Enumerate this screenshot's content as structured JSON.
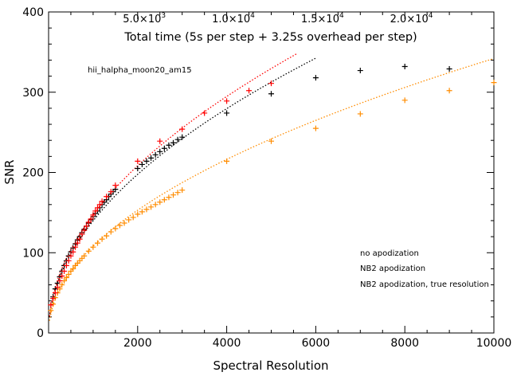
{
  "chart_data": {
    "type": "scatter",
    "annotation": "hii_halpha_moon20_am15",
    "xlabel": "Spectral Resolution",
    "ylabel": "SNR",
    "xlim": [
      0,
      10000
    ],
    "ylim": [
      0,
      400
    ],
    "x_ticks": [
      2000,
      4000,
      6000,
      8000,
      10000
    ],
    "y_ticks": [
      0,
      100,
      200,
      300,
      400
    ],
    "top_axis": {
      "label": "Total time (5s per step + 3.25s overhead per step)",
      "tick_labels": [
        {
          "mant": "5.0",
          "exp": "3",
          "at_x": 2150
        },
        {
          "mant": "1.0",
          "exp": "4",
          "at_x": 4150
        },
        {
          "mant": "1.5",
          "exp": "4",
          "at_x": 6150
        },
        {
          "mant": "2.0",
          "exp": "4",
          "at_x": 8150
        }
      ]
    },
    "legend": {
      "placement": "lower-right",
      "entries": [
        {
          "label": "no apodization",
          "color": "#000000"
        },
        {
          "label": "NB2 apodization",
          "color": "#ff8c00"
        },
        {
          "label": "NB2 apodization, true resolution",
          "color": "#ff0000"
        }
      ]
    },
    "series": [
      {
        "name": "no apodization",
        "color": "#000000",
        "marker": "plus",
        "points": [
          [
            100,
            45
          ],
          [
            150,
            55
          ],
          [
            200,
            62
          ],
          [
            250,
            70
          ],
          [
            300,
            77
          ],
          [
            350,
            84
          ],
          [
            400,
            90
          ],
          [
            450,
            96
          ],
          [
            500,
            101
          ],
          [
            550,
            106
          ],
          [
            600,
            111
          ],
          [
            650,
            116
          ],
          [
            700,
            120
          ],
          [
            750,
            125
          ],
          [
            800,
            129
          ],
          [
            850,
            133
          ],
          [
            900,
            137
          ],
          [
            950,
            141
          ],
          [
            1000,
            145
          ],
          [
            1050,
            149
          ],
          [
            1100,
            152
          ],
          [
            1150,
            156
          ],
          [
            1200,
            160
          ],
          [
            1250,
            163
          ],
          [
            1300,
            166
          ],
          [
            1350,
            170
          ],
          [
            1400,
            173
          ],
          [
            1450,
            176
          ],
          [
            1500,
            179
          ],
          [
            2000,
            205
          ],
          [
            2100,
            210
          ],
          [
            2200,
            214
          ],
          [
            2300,
            218
          ],
          [
            2400,
            222
          ],
          [
            2500,
            226
          ],
          [
            2600,
            230
          ],
          [
            2700,
            234
          ],
          [
            2800,
            237
          ],
          [
            2900,
            241
          ],
          [
            3000,
            244
          ],
          [
            4000,
            274
          ],
          [
            5000,
            298
          ],
          [
            6000,
            318
          ],
          [
            7000,
            327
          ],
          [
            8000,
            332
          ],
          [
            9000,
            329
          ]
        ]
      },
      {
        "name": "NB2 apodization",
        "color": "#ff8c00",
        "marker": "plus",
        "points": [
          [
            50,
            28
          ],
          [
            100,
            36
          ],
          [
            150,
            44
          ],
          [
            200,
            50
          ],
          [
            250,
            55
          ],
          [
            300,
            60
          ],
          [
            350,
            65
          ],
          [
            400,
            69
          ],
          [
            450,
            73
          ],
          [
            500,
            77
          ],
          [
            550,
            80
          ],
          [
            600,
            84
          ],
          [
            650,
            87
          ],
          [
            700,
            90
          ],
          [
            750,
            93
          ],
          [
            800,
            96
          ],
          [
            900,
            102
          ],
          [
            1000,
            107
          ],
          [
            1100,
            112
          ],
          [
            1200,
            117
          ],
          [
            1300,
            121
          ],
          [
            1400,
            126
          ],
          [
            1500,
            130
          ],
          [
            1600,
            134
          ],
          [
            1700,
            137
          ],
          [
            1800,
            141
          ],
          [
            1900,
            144
          ],
          [
            2000,
            148
          ],
          [
            2100,
            151
          ],
          [
            2200,
            154
          ],
          [
            2300,
            157
          ],
          [
            2400,
            160
          ],
          [
            2500,
            163
          ],
          [
            2600,
            166
          ],
          [
            2700,
            169
          ],
          [
            2800,
            172
          ],
          [
            2900,
            175
          ],
          [
            3000,
            178
          ],
          [
            4000,
            214
          ],
          [
            5000,
            239
          ],
          [
            6000,
            255
          ],
          [
            7000,
            273
          ],
          [
            8000,
            290
          ],
          [
            9000,
            302
          ],
          [
            10000,
            312
          ]
        ]
      },
      {
        "name": "NB2 apodization, true resolution",
        "color": "#ff0000",
        "marker": "plus",
        "points": [
          [
            50,
            35
          ],
          [
            100,
            43
          ],
          [
            150,
            50
          ],
          [
            200,
            57
          ],
          [
            250,
            65
          ],
          [
            300,
            71
          ],
          [
            350,
            77
          ],
          [
            400,
            84
          ],
          [
            450,
            90
          ],
          [
            500,
            96
          ],
          [
            550,
            101
          ],
          [
            600,
            107
          ],
          [
            650,
            112
          ],
          [
            700,
            117
          ],
          [
            750,
            123
          ],
          [
            800,
            128
          ],
          [
            850,
            133
          ],
          [
            900,
            138
          ],
          [
            950,
            142
          ],
          [
            1000,
            147
          ],
          [
            1050,
            152
          ],
          [
            1100,
            156
          ],
          [
            1150,
            160
          ],
          [
            1200,
            164
          ],
          [
            1300,
            170
          ],
          [
            1400,
            176
          ],
          [
            1500,
            184
          ],
          [
            2000,
            214
          ],
          [
            2500,
            239
          ],
          [
            3000,
            254
          ],
          [
            3500,
            274
          ],
          [
            4000,
            289
          ],
          [
            4500,
            302
          ],
          [
            5000,
            311
          ]
        ]
      }
    ],
    "fits": [
      {
        "name": "no apodization fit",
        "color": "#000000",
        "style": "dotted",
        "k": 4.42,
        "x_end": 6050
      },
      {
        "name": "NB2 apodization fit",
        "color": "#ff8c00",
        "style": "dotted",
        "k": 3.42,
        "x_end": 10000
      },
      {
        "name": "NB2 apodization, true resolution fit",
        "color": "#ff0000",
        "style": "dotted",
        "k": 4.66,
        "x_end": 5600
      }
    ]
  }
}
